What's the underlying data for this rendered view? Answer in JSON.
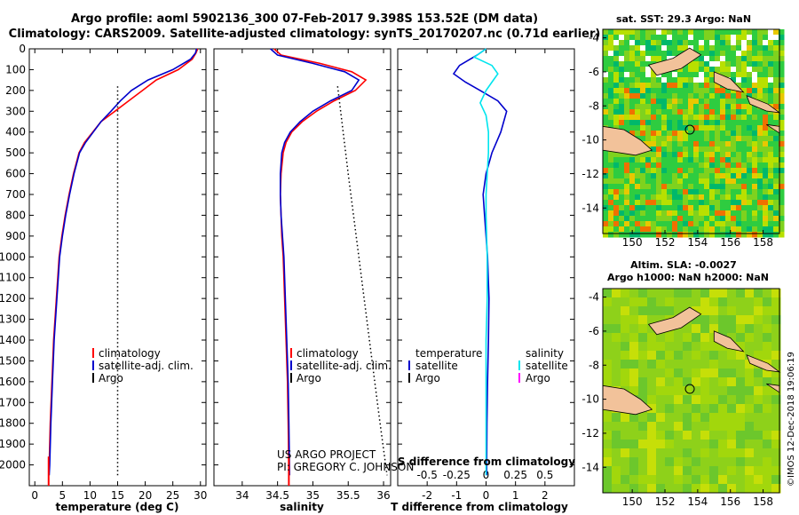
{
  "title_line1": "Argo profile: aoml 5902136_300 07-Feb-2017 9.398S 153.52E (DM data)",
  "title_line2": "Climatology: CARS2009. Satellite-adjusted climatology: synTS_20170207.nc (0.71d earlier)",
  "credit_line1": "US ARGO PROJECT",
  "credit_line2": "PI: GREGORY C. JOHNSON",
  "imos_stamp": "©IMOS 12-Dec-2018 19:06:19",
  "colors": {
    "climatology": "#ff0000",
    "satellite": "#0000cc",
    "argo": "#000000",
    "satellite_salinity": "#00e5ee",
    "argo_salinity": "#ff00ff"
  },
  "chart_data": [
    {
      "type": "line",
      "xlabel": "temperature (deg C)",
      "ylabel": "",
      "xlim": [
        -1,
        31
      ],
      "ylim": [
        2100,
        0
      ],
      "xticks": [
        "0",
        "5",
        "10",
        "15",
        "20",
        "25",
        "30"
      ],
      "yticks": [
        "0",
        "100",
        "200",
        "300",
        "400",
        "500",
        "600",
        "700",
        "800",
        "900",
        "1000",
        "1100",
        "1200",
        "1300",
        "1400",
        "1500",
        "1600",
        "1700",
        "1800",
        "1900",
        "2000"
      ],
      "legend": [
        "climatology",
        "satellite-adj. clim.",
        "Argo"
      ],
      "series": [
        {
          "name": "climatology",
          "x": [
            29.5,
            29.2,
            28.5,
            26,
            22,
            19.5,
            17,
            14.5,
            12,
            10.5,
            9,
            8,
            7,
            6.2,
            5.5,
            4.9,
            4.4,
            3.9,
            3.4,
            3.1,
            2.8,
            2.6,
            2.5
          ],
          "y": [
            0,
            20,
            50,
            100,
            150,
            200,
            250,
            300,
            350,
            400,
            450,
            500,
            600,
            700,
            800,
            900,
            1000,
            1200,
            1400,
            1600,
            1800,
            2000,
            2050
          ]
        },
        {
          "name": "satellite-adj. clim.",
          "x": [
            29.3,
            29.1,
            28.2,
            25,
            20.5,
            17.5,
            15.5,
            13.8,
            12,
            10.6,
            9.2,
            8.1,
            7.1,
            6.3,
            5.6,
            5,
            4.5,
            4,
            3.5,
            3.2,
            2.9,
            2.7,
            2.6
          ],
          "y": [
            0,
            20,
            50,
            100,
            150,
            200,
            250,
            300,
            350,
            400,
            450,
            500,
            600,
            700,
            800,
            900,
            1000,
            1200,
            1400,
            1600,
            1800,
            2000,
            2050
          ]
        },
        {
          "name": "Argo",
          "x": [
            15,
            15,
            15,
            15,
            15
          ],
          "y": [
            180,
            500,
            1000,
            1500,
            2050
          ]
        }
      ]
    },
    {
      "type": "line",
      "xlabel": "salinity",
      "ylabel": "",
      "xlim": [
        33.6,
        36.1
      ],
      "ylim": [
        2100,
        0
      ],
      "xticks": [
        "34",
        "34.5",
        "35",
        "35.5",
        "36"
      ],
      "legend": [
        "climatology",
        "satellite-adj. clim.",
        "Argo"
      ],
      "series": [
        {
          "name": "climatology",
          "x": [
            34.45,
            34.55,
            35.1,
            35.55,
            35.75,
            35.6,
            35.3,
            35.05,
            34.85,
            34.7,
            34.62,
            34.58,
            34.55,
            34.54,
            34.55,
            34.56,
            34.58,
            34.6,
            34.62,
            34.64,
            34.65,
            34.66
          ],
          "y": [
            0,
            30,
            70,
            110,
            150,
            200,
            250,
            300,
            350,
            400,
            450,
            500,
            600,
            700,
            800,
            900,
            1000,
            1200,
            1400,
            1600,
            1800,
            2050
          ]
        },
        {
          "name": "satellite-adj. clim.",
          "x": [
            34.4,
            34.5,
            35.0,
            35.45,
            35.65,
            35.55,
            35.25,
            35.0,
            34.82,
            34.68,
            34.6,
            34.56,
            34.54,
            34.54,
            34.55,
            34.57,
            34.59,
            34.61,
            34.63,
            34.65,
            34.66,
            34.67
          ],
          "y": [
            0,
            30,
            70,
            110,
            150,
            200,
            250,
            300,
            350,
            400,
            450,
            500,
            600,
            700,
            800,
            900,
            1000,
            1200,
            1400,
            1600,
            1800,
            2050
          ]
        },
        {
          "name": "Argo",
          "x": [
            35.35,
            35.5,
            35.65,
            35.8,
            35.95,
            36.05
          ],
          "y": [
            180,
            600,
            1000,
            1400,
            1800,
            2050
          ]
        }
      ]
    },
    {
      "type": "line",
      "xlabel": "T difference from climatology",
      "xlabel_top": "S difference from climatology",
      "xlim": [
        -3,
        3
      ],
      "ylim": [
        2100,
        0
      ],
      "xticks": [
        "-2",
        "-1",
        "0",
        "1",
        "2"
      ],
      "xticks_top": [
        "-0.5",
        "-0.25",
        "0",
        "0.25",
        "0.5"
      ],
      "legend_left_title": "temperature",
      "legend_right_title": "salinity",
      "legend_left": [
        "satellite",
        "Argo"
      ],
      "legend_right": [
        "satellite",
        "Argo"
      ],
      "series": [
        {
          "name": "temperature satellite",
          "x": [
            0,
            -0.3,
            -0.9,
            -1.1,
            -0.7,
            -0.2,
            0.4,
            0.7,
            0.6,
            0.5,
            0.35,
            0.2,
            0,
            -0.1,
            -0.05,
            0,
            0.05,
            0.1,
            0.08,
            0.05,
            0.03,
            0.02,
            0.02
          ],
          "y": [
            0,
            30,
            80,
            120,
            160,
            200,
            250,
            300,
            350,
            400,
            450,
            500,
            600,
            700,
            800,
            900,
            1000,
            1200,
            1400,
            1600,
            1800,
            2000,
            2050
          ]
        },
        {
          "name": "salinity satellite",
          "x": [
            0,
            -0.1,
            0.05,
            0.1,
            0.05,
            0,
            -0.05,
            0,
            0.02,
            0.02,
            0.01,
            0,
            0,
            0.01,
            0.01,
            0,
            0,
            0,
            0
          ],
          "y": [
            0,
            40,
            80,
            120,
            160,
            200,
            260,
            320,
            400,
            500,
            600,
            700,
            800,
            1000,
            1200,
            1400,
            1600,
            1800,
            2050
          ]
        }
      ]
    },
    {
      "type": "heatmap",
      "title": "sat. SST: 29.3 Argo: NaN",
      "xlim": [
        148.2,
        159
      ],
      "ylim": [
        -15.5,
        -3.5
      ],
      "xticks": [
        "150",
        "152",
        "154",
        "156",
        "158"
      ],
      "yticks": [
        "-4",
        "-6",
        "-8",
        "-10",
        "-12",
        "-14"
      ]
    },
    {
      "type": "heatmap",
      "title": "Altim. SLA: -0.0027",
      "subtitle": "Argo h1000: NaN h2000: NaN",
      "xlim": [
        148.2,
        159
      ],
      "ylim": [
        -15.5,
        -3.5
      ],
      "xticks": [
        "150",
        "152",
        "154",
        "156",
        "158"
      ],
      "yticks": [
        "-4",
        "-6",
        "-8",
        "-10",
        "-12",
        "-14"
      ]
    }
  ]
}
